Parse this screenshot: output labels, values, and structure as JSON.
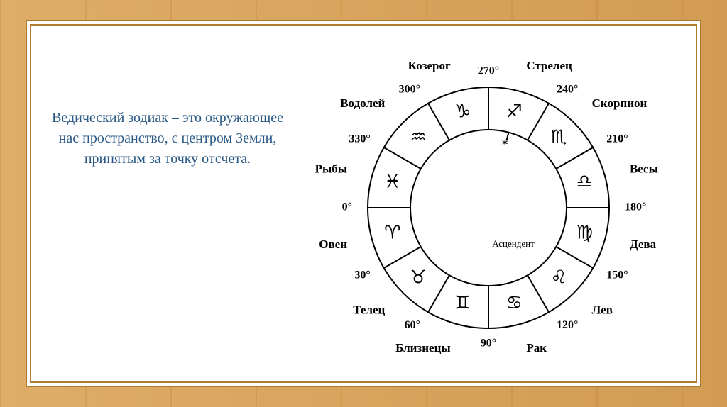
{
  "description": "Ведический зодиак – это окружающее нас пространство, с центром Земли, принятым за точку отсчета.",
  "description_color": "#2b5a86",
  "frame_border_color": "#b07a2f",
  "background_wood_color": "#d8a35a",
  "zodiac": {
    "type": "pie",
    "outer_radius": 170,
    "inner_radius": 110,
    "symbol_radius": 140,
    "label_radius": 206,
    "sectors_count": 12,
    "stroke": "#000000",
    "stroke_width": 2,
    "background_color": "#ffffff",
    "symbol_fontsize": 26,
    "label_fontsize": 17,
    "ascendant_label": "Асцендент",
    "ascendant_sector_index": 8,
    "signs": [
      {
        "name": "Овен",
        "degree": "0°",
        "symbol": "♈",
        "start_angle_deg": 180,
        "mid_angle_deg": 195
      },
      {
        "name": "Телец",
        "degree": "30°",
        "symbol": "♉",
        "start_angle_deg": 210,
        "mid_angle_deg": 225
      },
      {
        "name": "Близнецы",
        "degree": "60°",
        "symbol": "♊",
        "start_angle_deg": 240,
        "mid_angle_deg": 255
      },
      {
        "name": "Рак",
        "degree": "90°",
        "symbol": "♋",
        "start_angle_deg": 270,
        "mid_angle_deg": 285
      },
      {
        "name": "Лев",
        "degree": "120°",
        "symbol": "♌",
        "start_angle_deg": 300,
        "mid_angle_deg": 315
      },
      {
        "name": "Дева",
        "degree": "150°",
        "symbol": "♍",
        "start_angle_deg": 330,
        "mid_angle_deg": 345
      },
      {
        "name": "Весы",
        "degree": "180°",
        "symbol": "♎",
        "start_angle_deg": 0,
        "mid_angle_deg": 15
      },
      {
        "name": "Скорпион",
        "degree": "210°",
        "symbol": "♏",
        "start_angle_deg": 30,
        "mid_angle_deg": 45
      },
      {
        "name": "Стрелец",
        "degree": "240°",
        "symbol": "♐",
        "start_angle_deg": 60,
        "mid_angle_deg": 75
      },
      {
        "name": "Козерог",
        "degree": "270°",
        "symbol": "♑",
        "start_angle_deg": 90,
        "mid_angle_deg": 105
      },
      {
        "name": "Водолей",
        "degree": "300°",
        "symbol": "♒",
        "start_angle_deg": 120,
        "mid_angle_deg": 135
      },
      {
        "name": "Рыбы",
        "degree": "330°",
        "symbol": "♓",
        "start_angle_deg": 150,
        "mid_angle_deg": 165
      }
    ]
  }
}
